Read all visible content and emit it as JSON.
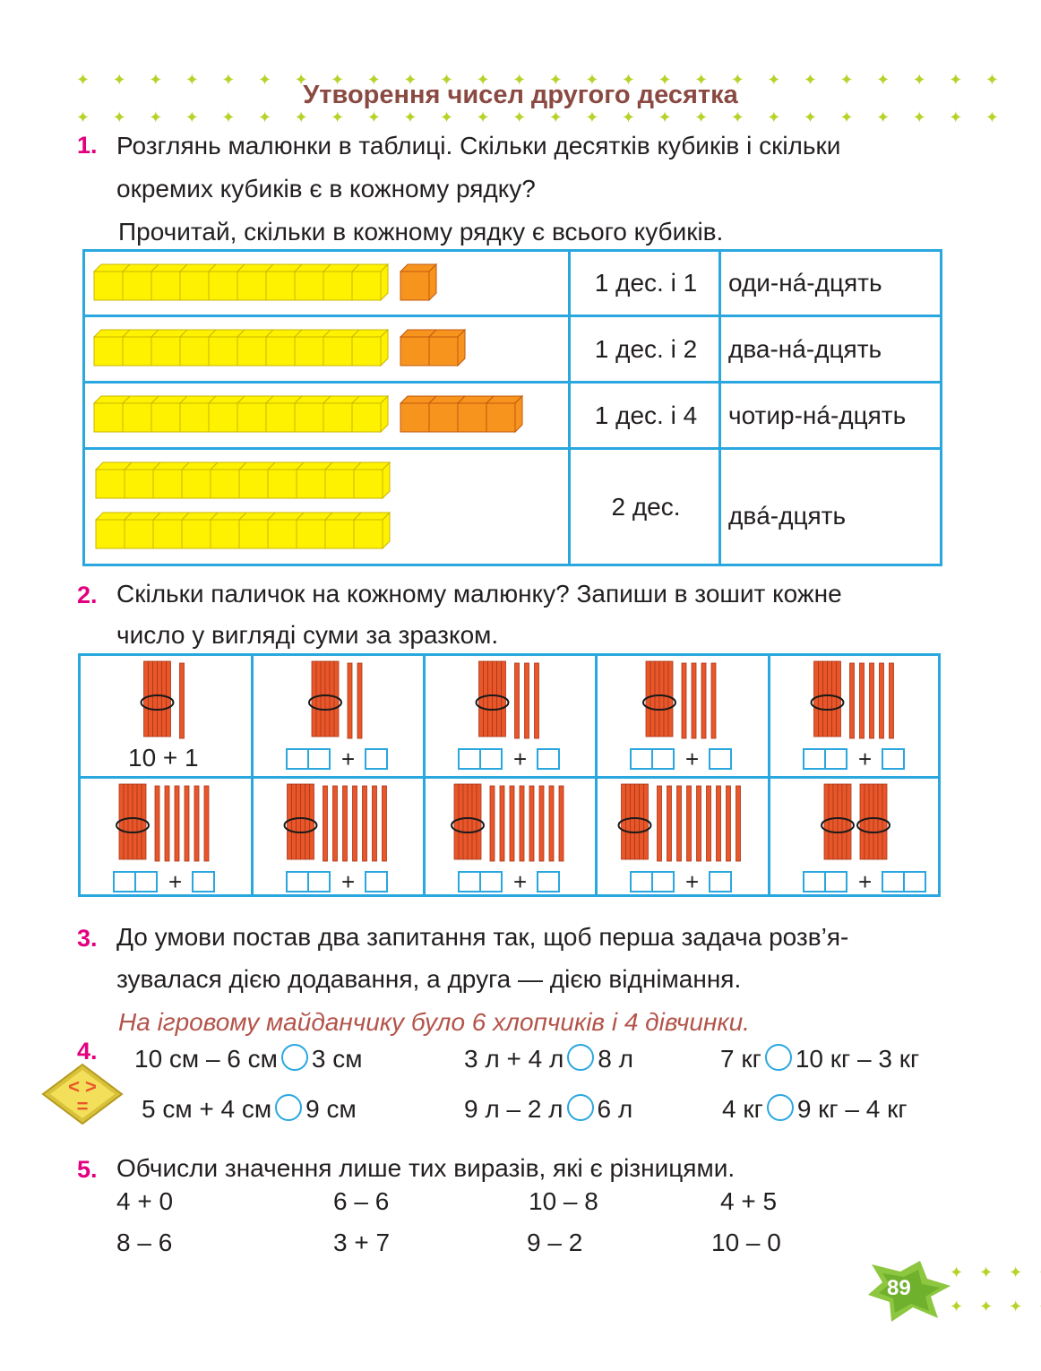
{
  "header": {
    "title": "Утворення чисел другого десятка"
  },
  "task1": {
    "number": "1.",
    "text_line1": "Розглянь малюнки в таблиці. Скільки десятків кубиків і скільки",
    "text_line2": "окремих кубиків є в кожному рядку?",
    "text_line3": "Прочитай, скільки в кожному рядку є всього кубиків.",
    "rows": [
      {
        "tens": 1,
        "units": 1,
        "notation": "1 дес. і 1",
        "word": "оди-нá-дцять"
      },
      {
        "tens": 1,
        "units": 2,
        "notation": "1 дес. і 2",
        "word": "два-нá-дцять"
      },
      {
        "tens": 1,
        "units": 4,
        "notation": "1 дес. і 4",
        "word": "чотир-нá-дцять"
      },
      {
        "tens": 2,
        "units": 0,
        "notation": "2 дес.",
        "word": "двá-дцять"
      }
    ]
  },
  "task2": {
    "number": "2.",
    "text_line1": "Скільки паличок на кожному малюнку? Запиши в зошит кожне",
    "text_line2": "число у вигляді суми за зразком.",
    "sample": "10 + 1",
    "plus": "+",
    "cells": [
      {
        "bundles": 1,
        "sticks": 1
      },
      {
        "bundles": 1,
        "sticks": 2
      },
      {
        "bundles": 1,
        "sticks": 3
      },
      {
        "bundles": 1,
        "sticks": 4
      },
      {
        "bundles": 1,
        "sticks": 5
      },
      {
        "bundles": 1,
        "sticks": 6
      },
      {
        "bundles": 1,
        "sticks": 7
      },
      {
        "bundles": 1,
        "sticks": 8
      },
      {
        "bundles": 1,
        "sticks": 9
      },
      {
        "bundles": 2,
        "sticks": 0
      }
    ]
  },
  "task3": {
    "number": "3.",
    "text_line1": "До умови постав два запитання так, щоб перша задача розв’я-",
    "text_line2": "зувалася дією додавання, а друга — дією віднімання.",
    "condition": "На ігровому майданчику було 6 хлопчиків і 4 дівчинки."
  },
  "task4": {
    "number": "4.",
    "icon_symbols": "< > =",
    "comparisons": [
      {
        "left": "10 см – 6 см",
        "right": "3 см"
      },
      {
        "left": "3 л + 4 л",
        "right": "8 л"
      },
      {
        "left": "7 кг",
        "right": "10 кг – 3 кг"
      },
      {
        "left": "5 см + 4 см",
        "right": "9 см"
      },
      {
        "left": "9 л – 2 л",
        "right": "6 л"
      },
      {
        "left": "4 кг",
        "right": "9 кг – 4 кг"
      }
    ]
  },
  "task5": {
    "number": "5.",
    "text": "Обчисли значення лише тих виразів, які є різницями.",
    "expressions": [
      "4 + 0",
      "6 – 6",
      "10 – 8",
      "4 + 5",
      "8 – 6",
      "3 + 7",
      "9 – 2",
      "10 – 0"
    ]
  },
  "footer": {
    "page_number": "89"
  },
  "colors": {
    "tens_cube": "#fff200",
    "unit_cube": "#f7941d",
    "stick": "#e8562a",
    "table_border": "#2aa7df",
    "task_number": "#e3007e",
    "title": "#8a4a42",
    "stars": "#b9d22a"
  }
}
